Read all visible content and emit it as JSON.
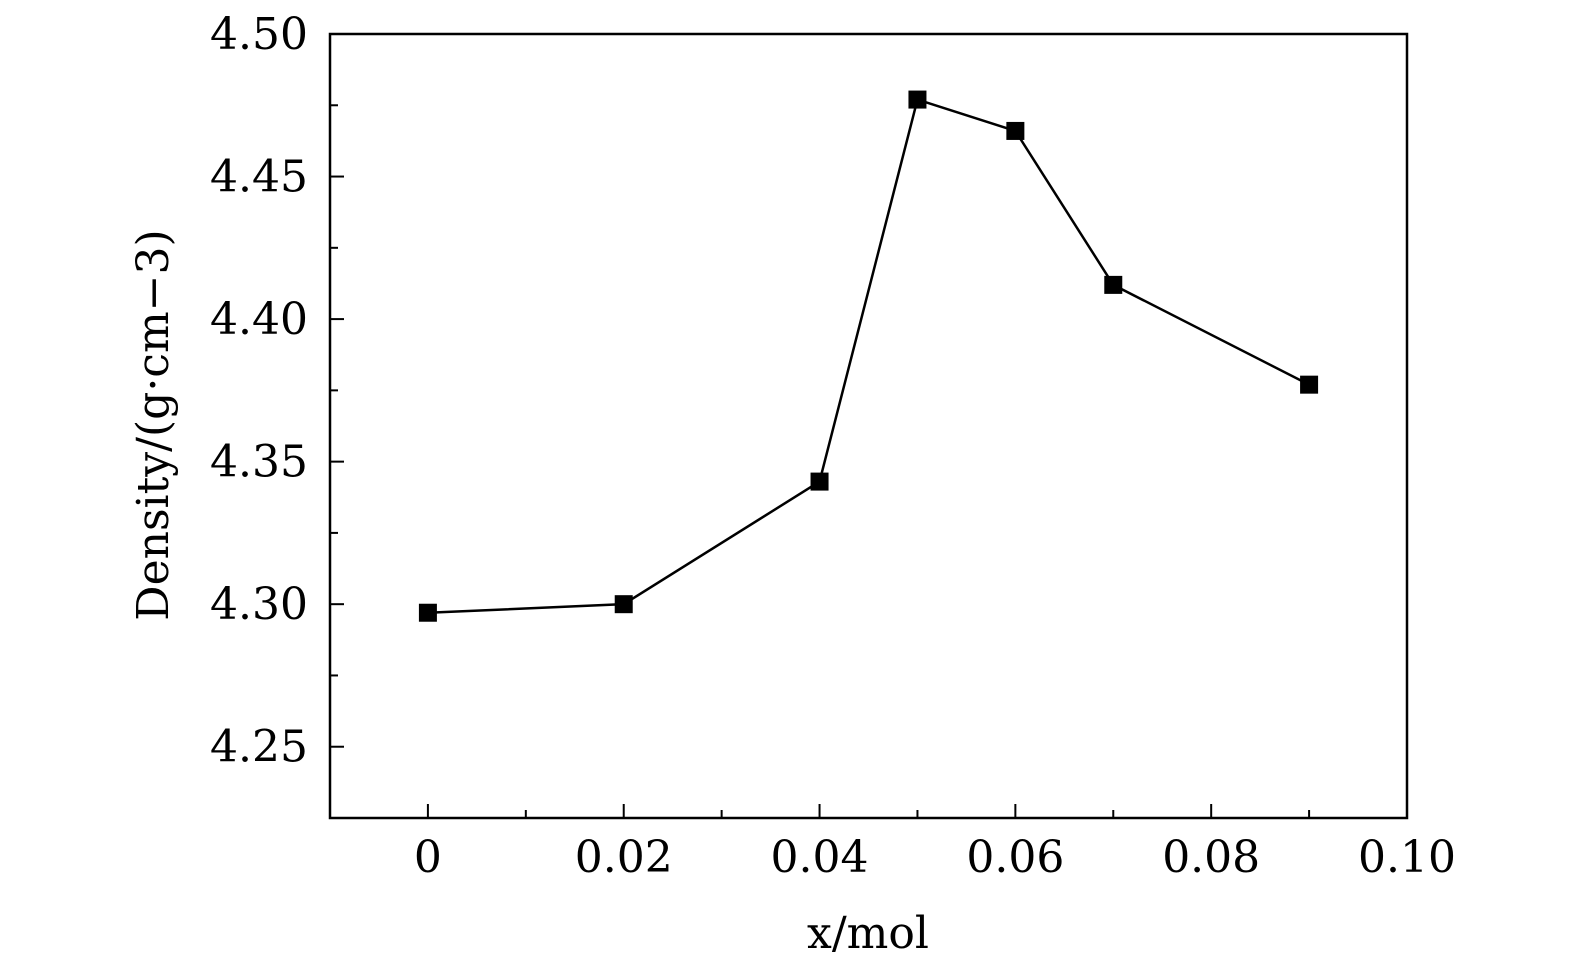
{
  "chart_data": {
    "type": "line",
    "title": "",
    "xlabel": "x/mol",
    "ylabel": "Density/(g·cm−3)",
    "xlim": [
      -0.01,
      0.1
    ],
    "ylim": [
      4.225,
      4.5
    ],
    "x_ticks": [
      0,
      0.02,
      0.04,
      0.06,
      0.08,
      0.1
    ],
    "x_tick_labels": [
      "0",
      "0.02",
      "0.04",
      "0.06",
      "0.08",
      "0.10"
    ],
    "y_ticks": [
      4.25,
      4.3,
      4.35,
      4.4,
      4.45,
      4.5
    ],
    "y_tick_labels": [
      "4.25",
      "4.30",
      "4.35",
      "4.40",
      "4.45",
      "4.50"
    ],
    "x_minor_step": 0.01,
    "y_minor_step": 0.025,
    "grid": false,
    "legend": "none",
    "series": [
      {
        "x": [
          0,
          0.02,
          0.04,
          0.05,
          0.06,
          0.07,
          0.09
        ],
        "y": [
          4.297,
          4.3,
          4.343,
          4.477,
          4.466,
          4.412,
          4.377
        ],
        "marker": "square",
        "color": "#000000"
      }
    ]
  }
}
